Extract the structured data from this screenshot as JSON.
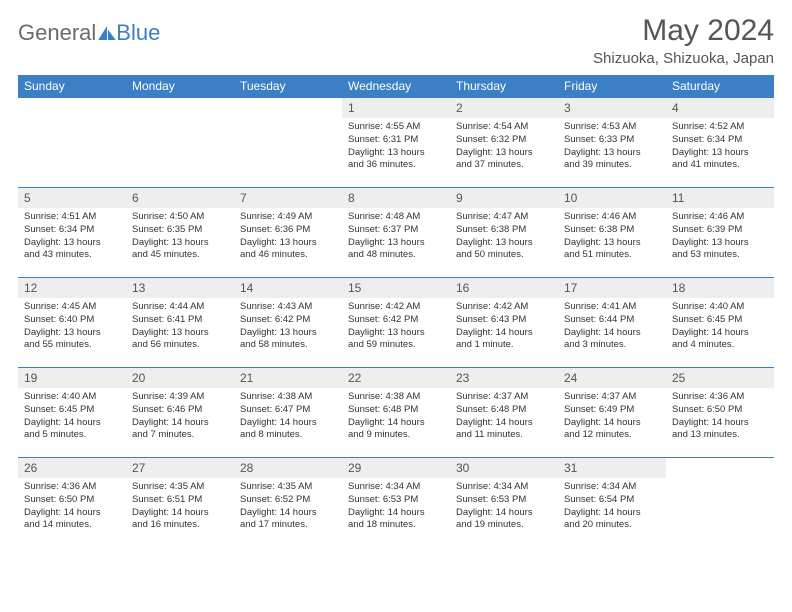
{
  "brand": {
    "part1": "General",
    "part2": "Blue"
  },
  "title": "May 2024",
  "location": "Shizuoka, Shizuoka, Japan",
  "header_bg": "#3b7fc4",
  "days_of_week": [
    "Sunday",
    "Monday",
    "Tuesday",
    "Wednesday",
    "Thursday",
    "Friday",
    "Saturday"
  ],
  "weeks": [
    [
      null,
      null,
      null,
      {
        "num": "1",
        "sunrise": "4:55 AM",
        "sunset": "6:31 PM",
        "day_h": "13",
        "day_m": "36"
      },
      {
        "num": "2",
        "sunrise": "4:54 AM",
        "sunset": "6:32 PM",
        "day_h": "13",
        "day_m": "37"
      },
      {
        "num": "3",
        "sunrise": "4:53 AM",
        "sunset": "6:33 PM",
        "day_h": "13",
        "day_m": "39"
      },
      {
        "num": "4",
        "sunrise": "4:52 AM",
        "sunset": "6:34 PM",
        "day_h": "13",
        "day_m": "41"
      }
    ],
    [
      {
        "num": "5",
        "sunrise": "4:51 AM",
        "sunset": "6:34 PM",
        "day_h": "13",
        "day_m": "43"
      },
      {
        "num": "6",
        "sunrise": "4:50 AM",
        "sunset": "6:35 PM",
        "day_h": "13",
        "day_m": "45"
      },
      {
        "num": "7",
        "sunrise": "4:49 AM",
        "sunset": "6:36 PM",
        "day_h": "13",
        "day_m": "46"
      },
      {
        "num": "8",
        "sunrise": "4:48 AM",
        "sunset": "6:37 PM",
        "day_h": "13",
        "day_m": "48"
      },
      {
        "num": "9",
        "sunrise": "4:47 AM",
        "sunset": "6:38 PM",
        "day_h": "13",
        "day_m": "50"
      },
      {
        "num": "10",
        "sunrise": "4:46 AM",
        "sunset": "6:38 PM",
        "day_h": "13",
        "day_m": "51"
      },
      {
        "num": "11",
        "sunrise": "4:46 AM",
        "sunset": "6:39 PM",
        "day_h": "13",
        "day_m": "53"
      }
    ],
    [
      {
        "num": "12",
        "sunrise": "4:45 AM",
        "sunset": "6:40 PM",
        "day_h": "13",
        "day_m": "55"
      },
      {
        "num": "13",
        "sunrise": "4:44 AM",
        "sunset": "6:41 PM",
        "day_h": "13",
        "day_m": "56"
      },
      {
        "num": "14",
        "sunrise": "4:43 AM",
        "sunset": "6:42 PM",
        "day_h": "13",
        "day_m": "58"
      },
      {
        "num": "15",
        "sunrise": "4:42 AM",
        "sunset": "6:42 PM",
        "day_h": "13",
        "day_m": "59"
      },
      {
        "num": "16",
        "sunrise": "4:42 AM",
        "sunset": "6:43 PM",
        "day_h": "14",
        "day_m": "1"
      },
      {
        "num": "17",
        "sunrise": "4:41 AM",
        "sunset": "6:44 PM",
        "day_h": "14",
        "day_m": "3"
      },
      {
        "num": "18",
        "sunrise": "4:40 AM",
        "sunset": "6:45 PM",
        "day_h": "14",
        "day_m": "4"
      }
    ],
    [
      {
        "num": "19",
        "sunrise": "4:40 AM",
        "sunset": "6:45 PM",
        "day_h": "14",
        "day_m": "5"
      },
      {
        "num": "20",
        "sunrise": "4:39 AM",
        "sunset": "6:46 PM",
        "day_h": "14",
        "day_m": "7"
      },
      {
        "num": "21",
        "sunrise": "4:38 AM",
        "sunset": "6:47 PM",
        "day_h": "14",
        "day_m": "8"
      },
      {
        "num": "22",
        "sunrise": "4:38 AM",
        "sunset": "6:48 PM",
        "day_h": "14",
        "day_m": "9"
      },
      {
        "num": "23",
        "sunrise": "4:37 AM",
        "sunset": "6:48 PM",
        "day_h": "14",
        "day_m": "11"
      },
      {
        "num": "24",
        "sunrise": "4:37 AM",
        "sunset": "6:49 PM",
        "day_h": "14",
        "day_m": "12"
      },
      {
        "num": "25",
        "sunrise": "4:36 AM",
        "sunset": "6:50 PM",
        "day_h": "14",
        "day_m": "13"
      }
    ],
    [
      {
        "num": "26",
        "sunrise": "4:36 AM",
        "sunset": "6:50 PM",
        "day_h": "14",
        "day_m": "14"
      },
      {
        "num": "27",
        "sunrise": "4:35 AM",
        "sunset": "6:51 PM",
        "day_h": "14",
        "day_m": "16"
      },
      {
        "num": "28",
        "sunrise": "4:35 AM",
        "sunset": "6:52 PM",
        "day_h": "14",
        "day_m": "17"
      },
      {
        "num": "29",
        "sunrise": "4:34 AM",
        "sunset": "6:53 PM",
        "day_h": "14",
        "day_m": "18"
      },
      {
        "num": "30",
        "sunrise": "4:34 AM",
        "sunset": "6:53 PM",
        "day_h": "14",
        "day_m": "19"
      },
      {
        "num": "31",
        "sunrise": "4:34 AM",
        "sunset": "6:54 PM",
        "day_h": "14",
        "day_m": "20"
      },
      null
    ]
  ]
}
